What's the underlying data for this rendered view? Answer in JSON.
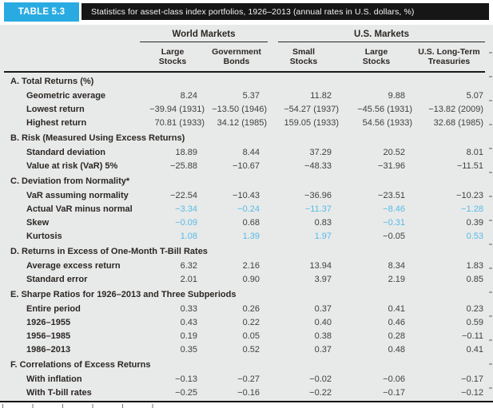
{
  "figure": {
    "badge": "TABLE 5.3",
    "title": "Statistics for asset-class index portfolios, 1926–2013 (annual rates in U.S. dollars, %)"
  },
  "colors": {
    "accent_cyan": "#29abe2",
    "highlight_blue": "#55bce7",
    "title_bar_black": "#161616",
    "panel_gray": "#e8e9e9"
  },
  "header": {
    "groups": [
      {
        "label": "World Markets"
      },
      {
        "label": "U.S. Markets"
      }
    ],
    "columns": [
      {
        "line1": "Large",
        "line2": "Stocks"
      },
      {
        "line1": "Government",
        "line2": "Bonds"
      },
      {
        "line1": "Small",
        "line2": "Stocks"
      },
      {
        "line1": "Large",
        "line2": "Stocks"
      },
      {
        "line1": "U.S. Long-Term",
        "line2": "Treasuries"
      }
    ]
  },
  "sections": [
    {
      "header": "A. Total Returns (%)",
      "rows": [
        {
          "label": "Geometric average",
          "values": [
            "8.24",
            "5.37",
            "11.82",
            "9.88",
            "5.07"
          ]
        },
        {
          "label": "Lowest return",
          "values": [
            "−39.94 (1931)",
            "−13.50 (1946)",
            "−54.27 (1937)",
            "−45.56 (1931)",
            "−13.82 (2009)"
          ]
        },
        {
          "label": "Highest return",
          "values": [
            "70.81 (1933)",
            "34.12 (1985)",
            "159.05 (1933)",
            "54.56 (1933)",
            "32.68 (1985)"
          ]
        }
      ]
    },
    {
      "header": "B. Risk (Measured Using Excess Returns)",
      "rows": [
        {
          "label": "Standard deviation",
          "values": [
            "18.89",
            "8.44",
            "37.29",
            "20.52",
            "8.01"
          ]
        },
        {
          "label": "Value at risk (VaR) 5%",
          "values": [
            "−25.88",
            "−10.67",
            "−48.33",
            "−31.96",
            "−11.51"
          ]
        }
      ]
    },
    {
      "header": "C. Deviation from Normality*",
      "rows": [
        {
          "label": "VaR assuming normality",
          "values": [
            "−22.54",
            "−10.43",
            "−36.96",
            "−23.51",
            "−10.23"
          ]
        },
        {
          "label": "Actual VaR minus normal",
          "values": [
            "−3.34",
            "−0.24",
            "−11.37",
            "−8.46",
            "−1.28"
          ],
          "blue": [
            true,
            true,
            true,
            true,
            true
          ]
        },
        {
          "label": "Skew",
          "values": [
            "−0.09",
            "0.68",
            "0.83",
            "−0.31",
            "0.39"
          ],
          "blue": [
            true,
            false,
            false,
            true,
            false
          ]
        },
        {
          "label": "Kurtosis",
          "values": [
            "1.08",
            "1.39",
            "1.97",
            "−0.05",
            "0.53"
          ],
          "blue": [
            true,
            true,
            true,
            false,
            true
          ]
        }
      ]
    },
    {
      "header": "D. Returns in Excess of One-Month T-Bill Rates",
      "rows": [
        {
          "label": "Average excess return",
          "values": [
            "6.32",
            "2.16",
            "13.94",
            "8.34",
            "1.83"
          ]
        },
        {
          "label": "Standard error",
          "values": [
            "2.01",
            "0.90",
            "3.97",
            "2.19",
            "0.85"
          ]
        }
      ]
    },
    {
      "header": "E. Sharpe Ratios for 1926–2013 and Three Subperiods",
      "rows": [
        {
          "label": "Entire period",
          "values": [
            "0.33",
            "0.26",
            "0.37",
            "0.41",
            "0.23"
          ]
        },
        {
          "label": "1926–1955",
          "values": [
            "0.43",
            "0.22",
            "0.40",
            "0.46",
            "0.59"
          ]
        },
        {
          "label": "1956–1985",
          "values": [
            "0.19",
            "0.05",
            "0.38",
            "0.28",
            "−0.11"
          ]
        },
        {
          "label": "1986–2013",
          "values": [
            "0.35",
            "0.52",
            "0.37",
            "0.48",
            "0.41"
          ]
        }
      ]
    },
    {
      "header": "F. Correlations of Excess Returns",
      "rows": [
        {
          "label": "With inflation",
          "values": [
            "−0.13",
            "−0.27",
            "−0.02",
            "−0.06",
            "−0.17"
          ]
        },
        {
          "label": "With T-bill rates",
          "values": [
            "−0.25",
            "−0.16",
            "−0.22",
            "−0.17",
            "−0.12"
          ]
        }
      ]
    }
  ]
}
